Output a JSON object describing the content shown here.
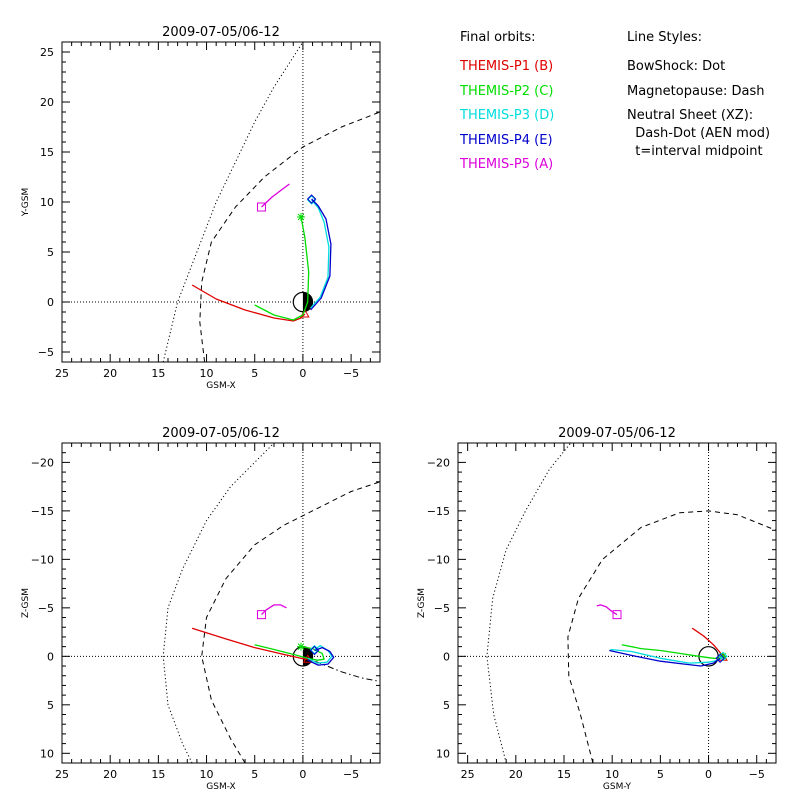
{
  "chart_data": [
    {
      "type": "line",
      "title": "2009-07-05/06-12",
      "xlabel": "GSM-X",
      "ylabel": "Y-GSM",
      "xlim": [
        25,
        -8
      ],
      "ylim": [
        26,
        -6
      ],
      "x_ticks": [
        25,
        20,
        15,
        10,
        5,
        0,
        -5
      ],
      "y_ticks": [
        -5,
        0,
        5,
        10,
        15,
        20,
        25
      ],
      "bowshock": {
        "x": [
          14.5,
          13,
          11,
          9,
          7,
          5,
          3,
          1,
          0
        ],
        "y": [
          -6,
          0,
          5,
          10,
          14,
          18,
          21.5,
          24.5,
          26
        ]
      },
      "magnetopause": {
        "x": [
          10.2,
          10.7,
          10.5,
          9.5,
          7,
          4,
          0,
          -4,
          -8
        ],
        "y": [
          -6,
          -2,
          2,
          6,
          9.5,
          12.5,
          15.5,
          17.5,
          19
        ]
      },
      "series": [
        {
          "name": "THEMIS-P1 (B)",
          "x": [
            11.5,
            9,
            6,
            3,
            1,
            0.2,
            -0.2
          ],
          "y": [
            1.7,
            0.3,
            -0.8,
            -1.6,
            -1.9,
            -1.6,
            -1.2
          ],
          "end_marker": "triangle"
        },
        {
          "name": "THEMIS-P2 (C)",
          "x": [
            5,
            3,
            1,
            0,
            -0.5,
            -0.6,
            -0.2,
            0.2
          ],
          "y": [
            -0.3,
            -1.3,
            -1.8,
            -1.3,
            0,
            3,
            6.5,
            8.5
          ],
          "end_marker": "asterisk"
        },
        {
          "name": "THEMIS-P3 (D)",
          "x": [
            -0.8,
            -1.8,
            -2.6,
            -2.7,
            -2.2,
            -1.6,
            -0.9
          ],
          "y": [
            -0.6,
            0.5,
            2.5,
            5.5,
            8,
            9.4,
            10.2
          ],
          "end_marker": "diamond"
        },
        {
          "name": "THEMIS-P4 (E)",
          "x": [
            -0.8,
            -1.9,
            -2.8,
            -2.9,
            -2.4,
            -1.6,
            -0.9
          ],
          "y": [
            -0.8,
            0.4,
            2.6,
            5.8,
            8.3,
            9.6,
            10.3
          ],
          "end_marker": "diamond"
        },
        {
          "name": "THEMIS-P5 (A)",
          "x": [
            4.3,
            3.2,
            2.1,
            1.4
          ],
          "y": [
            9.5,
            10.5,
            11.3,
            11.8
          ],
          "end_marker": "square"
        }
      ]
    },
    {
      "type": "line",
      "title": "2009-07-05/06-12",
      "xlabel": "GSM-X",
      "ylabel": "Z-GSM",
      "xlim": [
        25,
        -8
      ],
      "ylim": [
        -22,
        11
      ],
      "x_ticks": [
        25,
        20,
        15,
        10,
        5,
        0,
        -5
      ],
      "y_ticks": [
        10,
        5,
        0,
        -5,
        -10,
        -15,
        -20
      ],
      "bowshock": {
        "x": [
          11.5,
          12.5,
          14,
          14.5,
          14,
          12.5,
          10,
          7.5,
          5,
          3
        ],
        "y": [
          11,
          9,
          5,
          0,
          -5,
          -9,
          -14,
          -17.5,
          -20,
          -22
        ]
      },
      "magnetopause": {
        "x": [
          6,
          7.5,
          9.5,
          10.5,
          10,
          8,
          5,
          2,
          -2,
          -5,
          -8
        ],
        "y": [
          11,
          8.5,
          4.5,
          0,
          -4,
          -8,
          -11.5,
          -13.5,
          -15.5,
          -17,
          -18
        ]
      },
      "neutral_sheet": {
        "x": [
          0,
          -2,
          -4,
          -6,
          -8
        ],
        "y": [
          0,
          0.8,
          1.6,
          2.2,
          2.6
        ]
      },
      "series": [
        {
          "name": "THEMIS-P1 (B)",
          "x": [
            11.5,
            8,
            5,
            2,
            0.2,
            -0.5
          ],
          "y": [
            -2.9,
            -1.8,
            -0.9,
            -0.2,
            0.2,
            0.3
          ],
          "end_marker": "triangle"
        },
        {
          "name": "THEMIS-P2 (C)",
          "x": [
            5,
            3,
            1,
            -0.5,
            -1.5,
            -2.2,
            -2,
            -1,
            0.2
          ],
          "y": [
            -1.2,
            -0.7,
            -0.2,
            0.2,
            0.4,
            0.3,
            -0.3,
            -0.8,
            -1.0
          ],
          "end_marker": "asterisk"
        },
        {
          "name": "THEMIS-P3 (D)",
          "x": [
            -0.5,
            -1.5,
            -2.5,
            -3,
            -2.6,
            -1.8,
            -1.2
          ],
          "y": [
            0.2,
            0.7,
            0.6,
            0,
            -0.6,
            -1.1,
            -0.7
          ],
          "end_marker": "diamond"
        },
        {
          "name": "THEMIS-P4 (E)",
          "x": [
            -0.5,
            -1.6,
            -2.6,
            -3.2,
            -2.8,
            -2,
            -1.2
          ],
          "y": [
            0.4,
            0.9,
            0.8,
            0.1,
            -0.5,
            -0.9,
            -0.6
          ],
          "end_marker": "diamond"
        },
        {
          "name": "THEMIS-P5 (A)",
          "x": [
            4.3,
            3.8,
            3,
            2.3,
            1.7
          ],
          "y": [
            -4.3,
            -4.8,
            -5.3,
            -5.3,
            -5.0
          ],
          "end_marker": "square"
        }
      ]
    },
    {
      "type": "line",
      "title": "2009-07-05/06-12",
      "xlabel": "GSM-Y",
      "ylabel": "Z-GSM",
      "xlim": [
        26,
        -7
      ],
      "ylim": [
        -22,
        11
      ],
      "x_ticks": [
        25,
        20,
        15,
        10,
        5,
        0,
        -5
      ],
      "y_ticks": [
        10,
        5,
        0,
        -5,
        -10,
        -15,
        -20
      ],
      "bowshock": {
        "x": [
          21,
          22.3,
          23,
          22.4,
          21,
          19,
          16.5,
          14.3
        ],
        "y": [
          11,
          6,
          0,
          -6,
          -11,
          -15,
          -19.3,
          -22
        ]
      },
      "magnetopause": {
        "x": [
          12,
          13.3,
          14.5,
          14.6,
          13.5,
          11,
          7,
          3,
          0,
          -3,
          -7
        ],
        "y": [
          11,
          6,
          2,
          -2,
          -6,
          -10,
          -13.3,
          -14.8,
          -15,
          -14.6,
          -13
        ]
      },
      "series": [
        {
          "name": "THEMIS-P1 (B)",
          "x": [
            1.7,
            0.5,
            -0.5,
            -1.2,
            -1.5
          ],
          "y": [
            -2.9,
            -2.1,
            -1.2,
            -0.4,
            0.1
          ],
          "end_marker": "triangle"
        },
        {
          "name": "THEMIS-P2 (C)",
          "x": [
            9,
            7,
            5,
            3,
            1,
            -0.5,
            -1.2,
            -1.5
          ],
          "y": [
            -1.2,
            -0.8,
            -0.6,
            -0.3,
            0,
            0.2,
            0.2,
            0
          ],
          "end_marker": "asterisk"
        },
        {
          "name": "THEMIS-P3 (D)",
          "x": [
            10.2,
            8,
            5,
            2,
            0,
            -1,
            -1.5
          ],
          "y": [
            -0.7,
            -0.5,
            0.2,
            0.7,
            0.6,
            0.4,
            0
          ],
          "end_marker": "diamond"
        },
        {
          "name": "THEMIS-P4 (E)",
          "x": [
            10.3,
            8,
            5,
            2.5,
            0.8,
            -0.5,
            -1.2
          ],
          "y": [
            -0.6,
            -0.1,
            0.5,
            0.8,
            1.0,
            0.7,
            0.2
          ],
          "end_marker": "diamond"
        },
        {
          "name": "THEMIS-P5 (A)",
          "x": [
            9.5,
            10,
            10.6,
            11.2,
            11.6
          ],
          "y": [
            -4.3,
            -4.6,
            -5.1,
            -5.3,
            -5.2
          ],
          "end_marker": "square"
        }
      ]
    }
  ],
  "legend": {
    "orbits_header": "Final orbits:",
    "orbits": [
      {
        "label": "THEMIS-P1 (B)",
        "color": "#e00000"
      },
      {
        "label": "THEMIS-P2 (C)",
        "color": "#00dd00"
      },
      {
        "label": "THEMIS-P3 (D)",
        "color": "#00dddd"
      },
      {
        "label": "THEMIS-P4 (E)",
        "color": "#0000cc"
      },
      {
        "label": "THEMIS-P5 (A)",
        "color": "#dd00dd"
      }
    ],
    "styles_header": "Line Styles:",
    "styles": [
      "BowShock: Dot",
      "Magnetopause: Dash",
      "Neutral Sheet (XZ):",
      "  Dash-Dot (AEN mod)",
      "  t=interval midpoint"
    ]
  }
}
